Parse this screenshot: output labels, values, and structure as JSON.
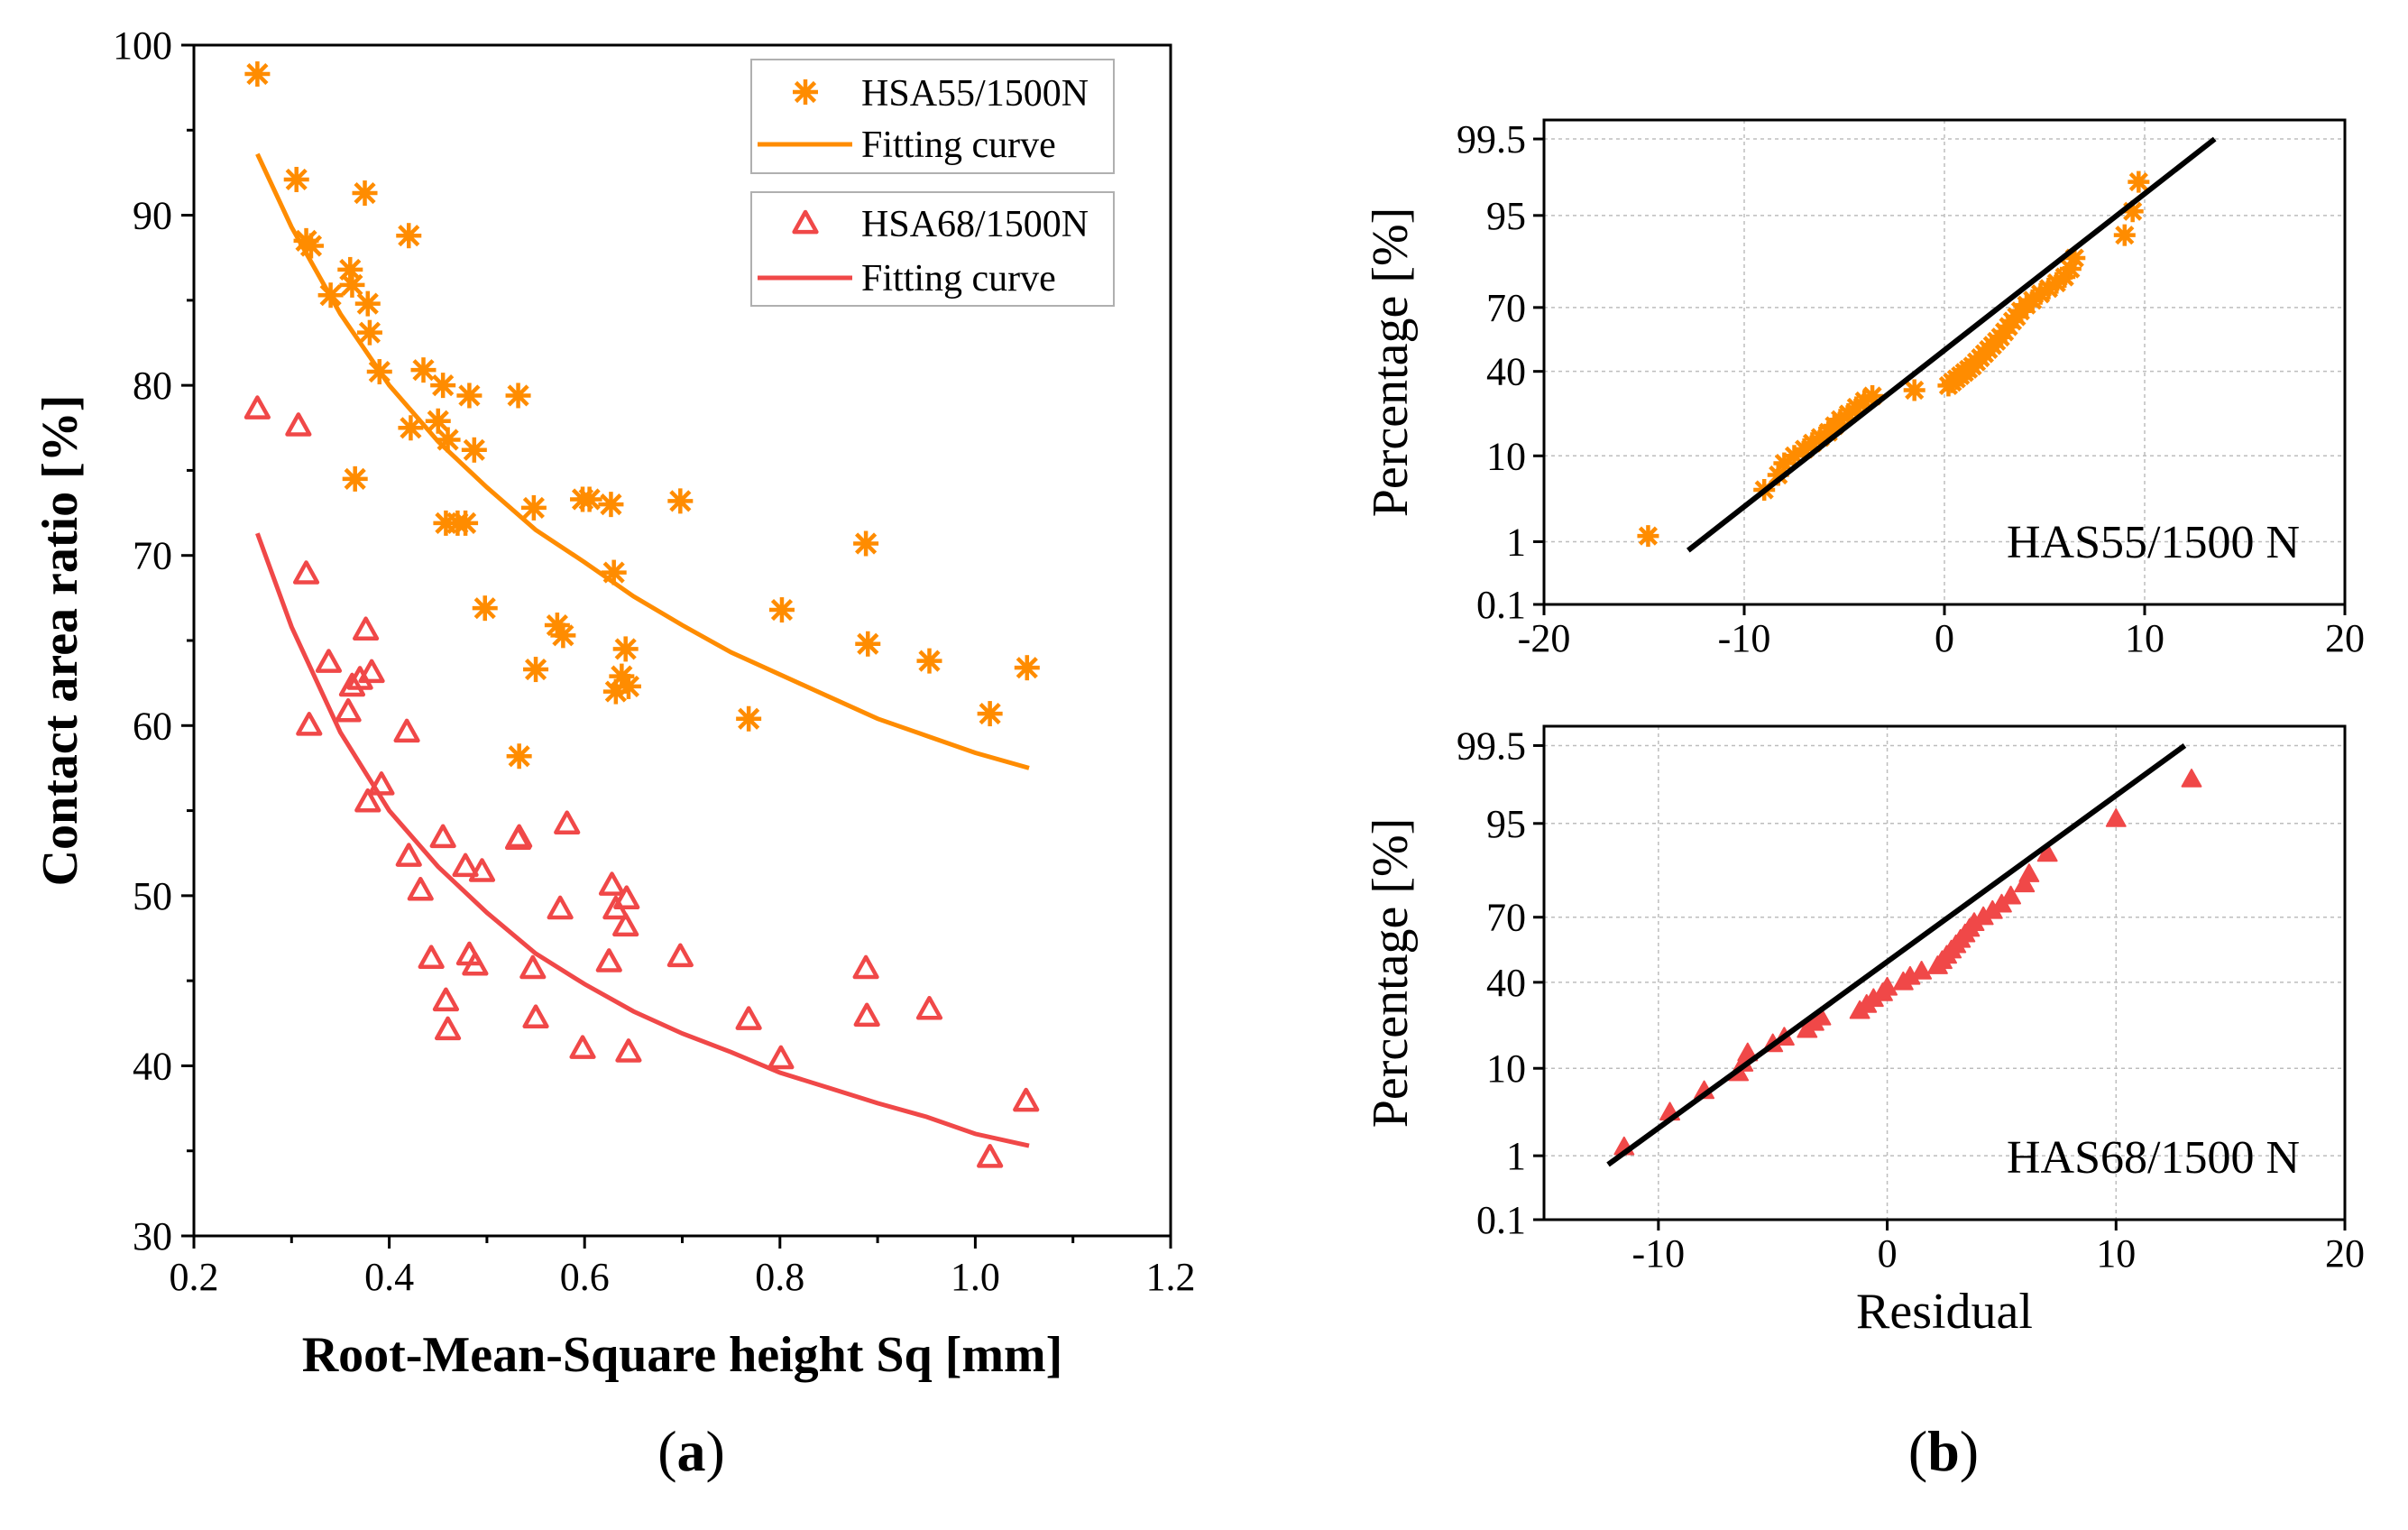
{
  "chart_data": [
    {
      "type": "scatter",
      "panel_label": "(a)",
      "panel_letter": "a",
      "xlabel": "Root-Mean-Square height Sq [mm]",
      "ylabel": "Contact area ratio [%]",
      "xlim": [
        0.2,
        1.2
      ],
      "ylim": [
        30,
        100
      ],
      "xticks": [
        "0.2",
        "0.4",
        "0.6",
        "0.8",
        "1.0",
        "1.2"
      ],
      "yticks": [
        "30",
        "40",
        "50",
        "60",
        "70",
        "80",
        "90",
        "100"
      ],
      "legend_position": "top-right",
      "series": [
        {
          "name": "HSA55/1500N",
          "marker": "asterisk",
          "color": "#ff8c00",
          "points": [
            [
              0.265,
              98.3
            ],
            [
              0.305,
              92.1
            ],
            [
              0.315,
              88.5
            ],
            [
              0.32,
              88.2
            ],
            [
              0.34,
              85.3
            ],
            [
              0.36,
              86.8
            ],
            [
              0.362,
              85.9
            ],
            [
              0.365,
              74.5
            ],
            [
              0.375,
              91.3
            ],
            [
              0.378,
              84.8
            ],
            [
              0.38,
              83.1
            ],
            [
              0.39,
              80.8
            ],
            [
              0.42,
              88.8
            ],
            [
              0.422,
              77.5
            ],
            [
              0.435,
              80.9
            ],
            [
              0.45,
              77.9
            ],
            [
              0.455,
              80.0
            ],
            [
              0.458,
              71.9
            ],
            [
              0.46,
              76.8
            ],
            [
              0.47,
              71.9
            ],
            [
              0.478,
              71.9
            ],
            [
              0.482,
              79.4
            ],
            [
              0.487,
              76.2
            ],
            [
              0.498,
              66.9
            ],
            [
              0.532,
              79.4
            ],
            [
              0.533,
              58.2
            ],
            [
              0.548,
              72.8
            ],
            [
              0.55,
              63.3
            ],
            [
              0.572,
              65.9
            ],
            [
              0.578,
              65.3
            ],
            [
              0.598,
              73.3
            ],
            [
              0.605,
              73.3
            ],
            [
              0.627,
              73.0
            ],
            [
              0.63,
              69.0
            ],
            [
              0.632,
              62.0
            ],
            [
              0.638,
              62.9
            ],
            [
              0.642,
              64.5
            ],
            [
              0.645,
              62.3
            ],
            [
              0.698,
              73.2
            ],
            [
              0.768,
              60.4
            ],
            [
              0.802,
              66.8
            ],
            [
              0.888,
              70.7
            ],
            [
              0.89,
              64.8
            ],
            [
              0.953,
              63.8
            ],
            [
              1.015,
              60.7
            ],
            [
              1.053,
              63.4
            ]
          ]
        },
        {
          "name": "Fitting curve",
          "type": "line",
          "color": "#ff8c00",
          "x": [
            0.265,
            0.3,
            0.35,
            0.4,
            0.45,
            0.5,
            0.55,
            0.6,
            0.65,
            0.7,
            0.75,
            0.8,
            0.85,
            0.9,
            0.95,
            1.0,
            1.055
          ],
          "values": [
            93.6,
            89.3,
            84.2,
            80.0,
            76.7,
            74.0,
            71.5,
            69.6,
            67.6,
            65.9,
            64.3,
            63.0,
            61.7,
            60.4,
            59.4,
            58.4,
            57.5
          ]
        },
        {
          "name": "HSA68/1500N",
          "marker": "triangle-open",
          "color": "#f04848",
          "points": [
            [
              0.265,
              78.6
            ],
            [
              0.307,
              77.6
            ],
            [
              0.315,
              68.9
            ],
            [
              0.318,
              60.0
            ],
            [
              0.338,
              63.7
            ],
            [
              0.358,
              60.8
            ],
            [
              0.362,
              62.3
            ],
            [
              0.37,
              62.7
            ],
            [
              0.376,
              65.6
            ],
            [
              0.378,
              55.5
            ],
            [
              0.382,
              63.1
            ],
            [
              0.392,
              56.5
            ],
            [
              0.418,
              59.6
            ],
            [
              0.42,
              52.3
            ],
            [
              0.432,
              50.3
            ],
            [
              0.443,
              46.3
            ],
            [
              0.455,
              53.4
            ],
            [
              0.458,
              43.8
            ],
            [
              0.46,
              42.1
            ],
            [
              0.478,
              51.7
            ],
            [
              0.482,
              46.5
            ],
            [
              0.488,
              45.9
            ],
            [
              0.495,
              51.4
            ],
            [
              0.532,
              53.3
            ],
            [
              0.533,
              53.4
            ],
            [
              0.547,
              45.7
            ],
            [
              0.55,
              42.8
            ],
            [
              0.575,
              49.2
            ],
            [
              0.582,
              54.2
            ],
            [
              0.598,
              41.0
            ],
            [
              0.625,
              46.1
            ],
            [
              0.628,
              50.6
            ],
            [
              0.632,
              49.2
            ],
            [
              0.642,
              48.2
            ],
            [
              0.643,
              49.8
            ],
            [
              0.645,
              40.8
            ],
            [
              0.698,
              46.4
            ],
            [
              0.768,
              42.7
            ],
            [
              0.801,
              40.4
            ],
            [
              0.888,
              45.7
            ],
            [
              0.889,
              42.9
            ],
            [
              0.953,
              43.3
            ],
            [
              1.015,
              34.6
            ],
            [
              1.052,
              37.9
            ]
          ]
        },
        {
          "name": "Fitting curve",
          "type": "line",
          "color": "#f04848",
          "x": [
            0.265,
            0.3,
            0.35,
            0.4,
            0.45,
            0.5,
            0.55,
            0.6,
            0.65,
            0.7,
            0.75,
            0.8,
            0.85,
            0.9,
            0.95,
            1.0,
            1.055
          ],
          "values": [
            71.3,
            65.8,
            59.6,
            55.0,
            51.7,
            49.0,
            46.6,
            44.8,
            43.2,
            41.9,
            40.8,
            39.6,
            38.7,
            37.8,
            37.0,
            36.0,
            35.3
          ]
        }
      ]
    },
    {
      "type": "scatter",
      "panel_label": "(b)",
      "panel_letter": "b",
      "title": "HAS55/1500 N",
      "xlabel": "",
      "ylabel": "Percentage [%]",
      "xlim": [
        -20,
        20
      ],
      "xticks": [
        "-20",
        "-10",
        "0",
        "10",
        "20"
      ],
      "yticks": [
        "0.1",
        "1",
        "10",
        "40",
        "70",
        "95",
        "99.5"
      ],
      "ytick_values": [
        0.1,
        1,
        10,
        40,
        70,
        95,
        99.5
      ],
      "grid": true,
      "series": [
        {
          "name": "HAS55/1500 N residuals",
          "marker": "asterisk",
          "color": "#ff8c00",
          "points": [
            [
              -14.8,
              1.2
            ],
            [
              -9.0,
              4.5
            ],
            [
              -8.3,
              6.5
            ],
            [
              -8.0,
              8.5
            ],
            [
              -7.5,
              10.0
            ],
            [
              -7.0,
              11.5
            ],
            [
              -6.6,
              13.0
            ],
            [
              -6.2,
              14.5
            ],
            [
              -5.8,
              16.0
            ],
            [
              -5.5,
              18.0
            ],
            [
              -5.2,
              20.0
            ],
            [
              -4.8,
              22.0
            ],
            [
              -4.4,
              24.5
            ],
            [
              -4.0,
              27.0
            ],
            [
              -3.6,
              29.0
            ],
            [
              -1.5,
              31.5
            ],
            [
              0.2,
              33.5
            ],
            [
              0.4,
              35.0
            ],
            [
              0.6,
              36.5
            ],
            [
              0.8,
              38.0
            ],
            [
              1.0,
              39.5
            ],
            [
              1.2,
              41.0
            ],
            [
              1.4,
              42.5
            ],
            [
              1.6,
              44.5
            ],
            [
              1.8,
              46.5
            ],
            [
              2.0,
              48.5
            ],
            [
              2.2,
              50.5
            ],
            [
              2.4,
              52.5
            ],
            [
              2.6,
              54.5
            ],
            [
              2.8,
              56.5
            ],
            [
              3.0,
              59.0
            ],
            [
              3.2,
              61.5
            ],
            [
              3.4,
              64.0
            ],
            [
              3.6,
              66.0
            ],
            [
              3.8,
              68.5
            ],
            [
              4.1,
              71.0
            ],
            [
              4.4,
              73.0
            ],
            [
              4.8,
              75.5
            ],
            [
              5.2,
              77.5
            ],
            [
              5.6,
              79.5
            ],
            [
              6.0,
              81.5
            ],
            [
              6.3,
              84.0
            ],
            [
              6.5,
              87.0
            ],
            [
              9.0,
              92.0
            ],
            [
              9.4,
              95.5
            ],
            [
              9.7,
              98.0
            ]
          ]
        },
        {
          "name": "reference line",
          "type": "line",
          "color": "#000000",
          "x": [
            -12.8,
            13.5
          ],
          "values": [
            0.75,
            99.5
          ]
        }
      ]
    },
    {
      "type": "scatter",
      "title": "HAS68/1500 N",
      "xlabel": "Residual",
      "ylabel": "Percentage [%]",
      "xlim": [
        -15,
        20
      ],
      "xticks": [
        "-10",
        "0",
        "10",
        "20"
      ],
      "xtick_values": [
        -10,
        0,
        10,
        20
      ],
      "yticks": [
        "0.1",
        "1",
        "10",
        "40",
        "70",
        "95",
        "99.5"
      ],
      "ytick_values": [
        0.1,
        1,
        10,
        40,
        70,
        95,
        99.5
      ],
      "grid": true,
      "series": [
        {
          "name": "HAS68/1500 N residuals",
          "marker": "triangle-filled",
          "color": "#f04848",
          "points": [
            [
              -11.5,
              1.3
            ],
            [
              -9.5,
              3.5
            ],
            [
              -8.0,
              6.0
            ],
            [
              -6.5,
              9.0
            ],
            [
              -6.3,
              11.0
            ],
            [
              -6.1,
              13.5
            ],
            [
              -5.0,
              16.0
            ],
            [
              -4.5,
              18.0
            ],
            [
              -3.5,
              20.5
            ],
            [
              -3.2,
              23.0
            ],
            [
              -2.9,
              25.0
            ],
            [
              -1.2,
              27.5
            ],
            [
              -0.9,
              30.0
            ],
            [
              -0.6,
              32.5
            ],
            [
              -0.2,
              35.0
            ],
            [
              0.0,
              37.5
            ],
            [
              0.7,
              40.0
            ],
            [
              1.0,
              42.5
            ],
            [
              1.5,
              45.0
            ],
            [
              2.2,
              47.5
            ],
            [
              2.4,
              50.0
            ],
            [
              2.6,
              52.5
            ],
            [
              2.8,
              55.0
            ],
            [
              3.0,
              57.5
            ],
            [
              3.2,
              60.0
            ],
            [
              3.4,
              62.5
            ],
            [
              3.6,
              65.0
            ],
            [
              3.8,
              67.5
            ],
            [
              4.2,
              70.0
            ],
            [
              4.6,
              72.5
            ],
            [
              5.0,
              75.0
            ],
            [
              5.4,
              78.0
            ],
            [
              6.0,
              82.0
            ],
            [
              6.2,
              85.0
            ],
            [
              7.0,
              90.0
            ],
            [
              10.0,
              95.5
            ],
            [
              13.3,
              98.5
            ]
          ]
        },
        {
          "name": "reference line",
          "type": "line",
          "color": "#000000",
          "x": [
            -12.2,
            13.0
          ],
          "values": [
            0.75,
            99.5
          ]
        }
      ]
    }
  ]
}
